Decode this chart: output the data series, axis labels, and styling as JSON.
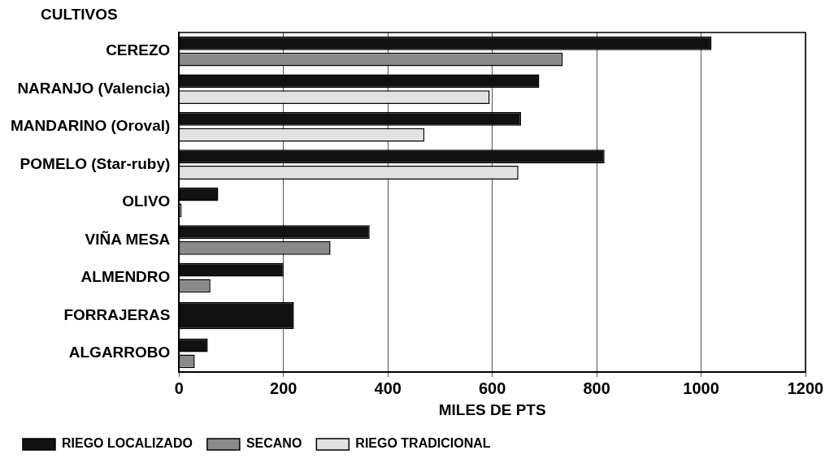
{
  "chart_data": {
    "type": "bar",
    "orientation": "horizontal",
    "ylabel": "CULTIVOS",
    "xlabel": "MILES DE PTS",
    "categories": [
      "CEREZO",
      "NARANJO (Valencia)",
      "MANDARINO (Oroval)",
      "POMELO (Star-ruby)",
      "OLIVO",
      "VIÑA MESA",
      "ALMENDRO",
      "FORRAJERAS",
      "ALGARROBO"
    ],
    "series": [
      {
        "name": "RIEGO LOCALIZADO",
        "color": "#111111",
        "values": [
          1020,
          690,
          655,
          815,
          75,
          365,
          200,
          220,
          55
        ]
      },
      {
        "name": "SECANO",
        "color": "#8a8a8a",
        "values": [
          735,
          null,
          null,
          null,
          5,
          290,
          60,
          null,
          30
        ]
      },
      {
        "name": "RIEGO TRADICIONAL",
        "color": "#e2e2e2",
        "values": [
          null,
          595,
          470,
          650,
          null,
          null,
          null,
          null,
          null
        ]
      }
    ],
    "xlim": [
      0,
      1200
    ],
    "xticks": [
      0,
      200,
      400,
      600,
      800,
      1000,
      1200
    ],
    "grid": "x",
    "legend": "bottom"
  }
}
